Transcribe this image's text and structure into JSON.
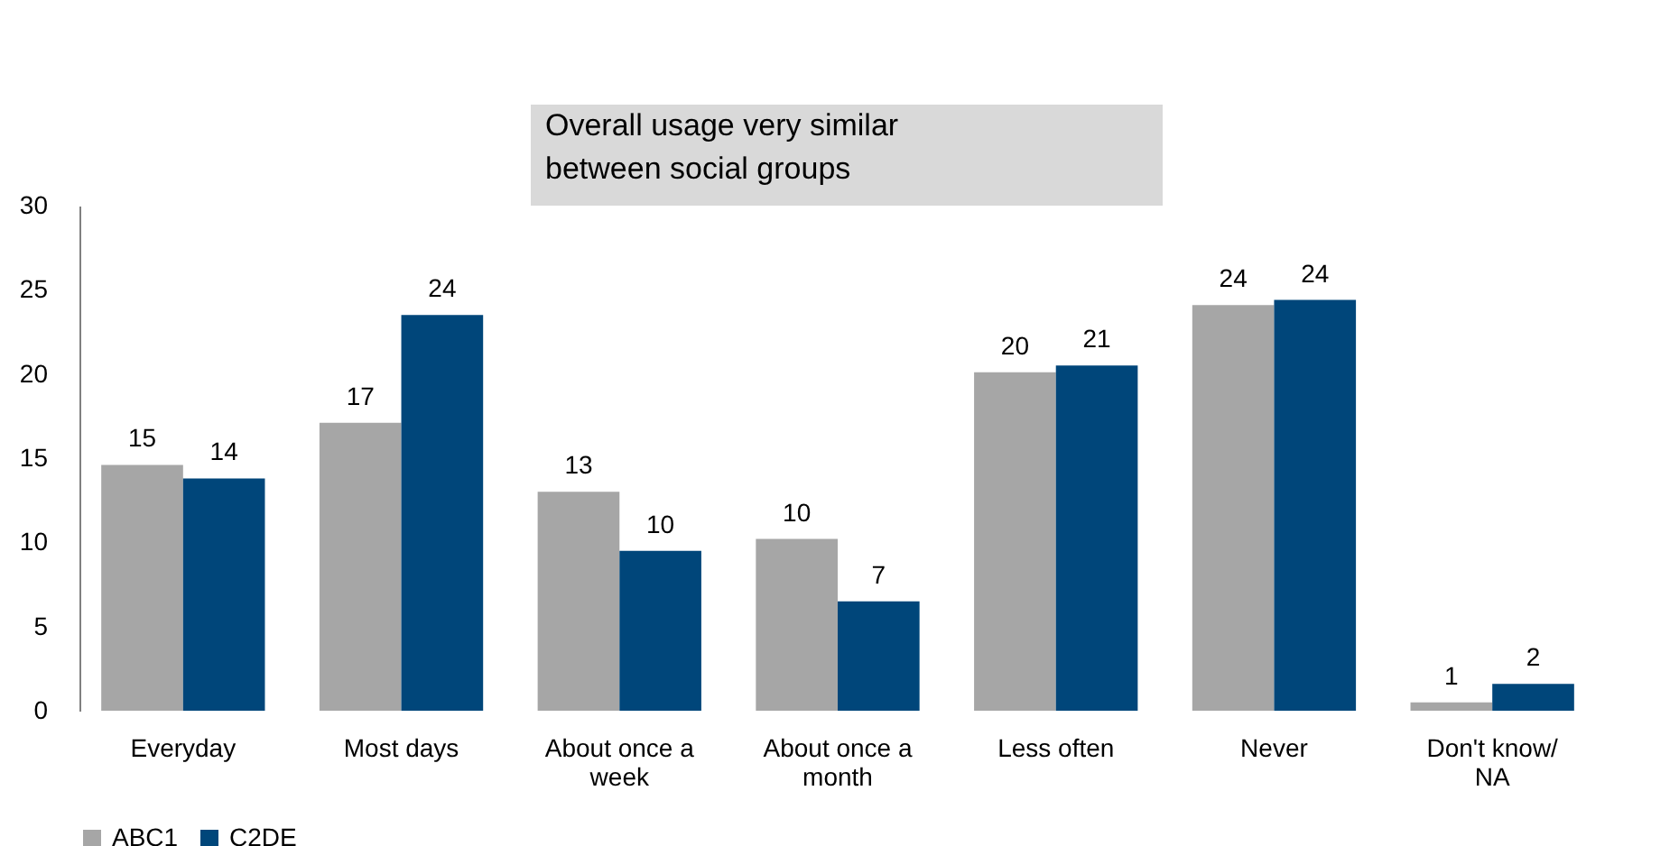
{
  "chart_data": {
    "type": "bar",
    "categories": [
      "Everyday",
      "Most days",
      "About once a week",
      "About once a month",
      "Less often",
      "Never",
      "Don't know/ NA"
    ],
    "series": [
      {
        "name": "ABC1",
        "color": "#a6a6a6",
        "values": [
          14.6,
          17.1,
          13.0,
          10.2,
          20.1,
          24.1,
          0.5
        ],
        "value_labels": [
          "15",
          "17",
          "13",
          "10",
          "20",
          "24",
          "1"
        ]
      },
      {
        "name": "C2DE",
        "color": "#00467a",
        "values": [
          13.8,
          23.5,
          9.5,
          6.5,
          20.5,
          24.4,
          1.6
        ],
        "value_labels": [
          "14",
          "24",
          "10",
          "7",
          "21",
          "24",
          "2"
        ]
      }
    ],
    "ylim": [
      0,
      30
    ],
    "yticks": [
      0,
      5,
      10,
      15,
      20,
      25,
      30
    ],
    "grid": false,
    "legend": "bottom",
    "annotations": [
      "Overall usage very similar between social groups"
    ]
  }
}
